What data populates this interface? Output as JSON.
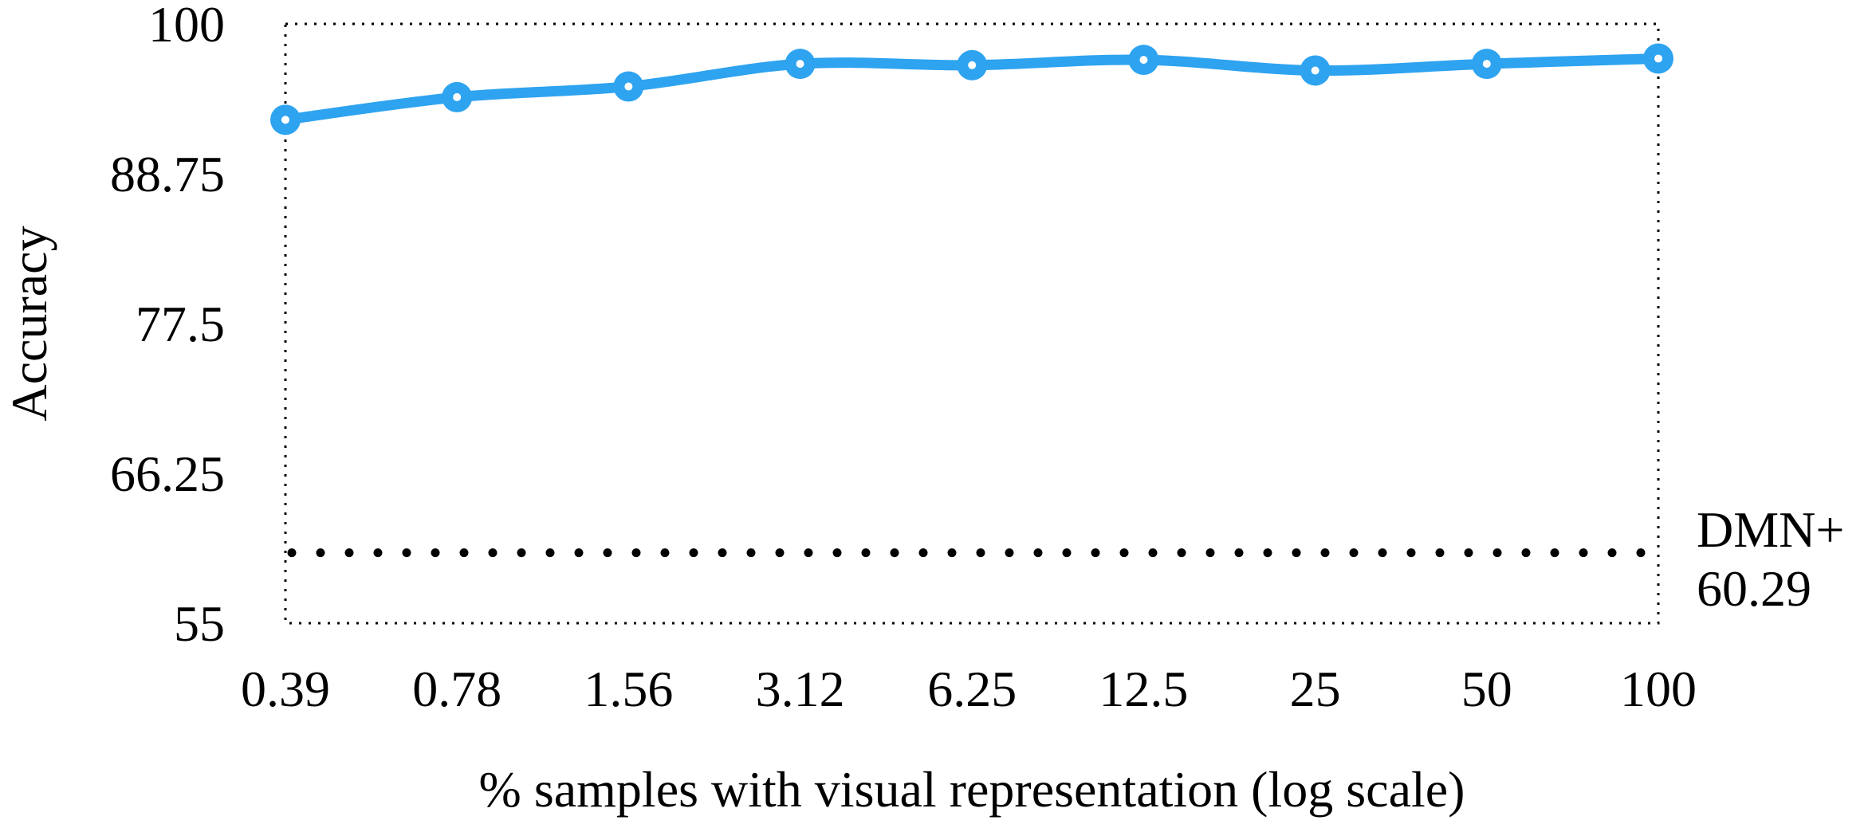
{
  "chart_data": {
    "type": "line",
    "xlabel": "% samples with visual representation (log scale)",
    "ylabel": "Accuracy",
    "x_scale": "log",
    "categories": [
      "0.39",
      "0.78",
      "1.56",
      "3.12",
      "6.25",
      "12.5",
      "25",
      "50",
      "100"
    ],
    "x": [
      0.39,
      0.78,
      1.56,
      3.12,
      6.25,
      12.5,
      25,
      50,
      100
    ],
    "ylim": [
      55,
      100
    ],
    "yticks": [
      "55",
      "66.25",
      "77.5",
      "88.75",
      "100"
    ],
    "ytick_values": [
      55,
      66.25,
      77.5,
      88.75,
      100
    ],
    "series": [
      {
        "values": [
          92.8,
          94.5,
          95.3,
          97.0,
          96.9,
          97.3,
          96.5,
          97.0,
          97.4
        ],
        "color": "#2ea3ef"
      }
    ],
    "baseline": {
      "name": "DMN+",
      "value_label": "60.29",
      "value": 60.29,
      "style": "dotted",
      "color": "#000000"
    },
    "grid": false,
    "frame": "dotted"
  }
}
